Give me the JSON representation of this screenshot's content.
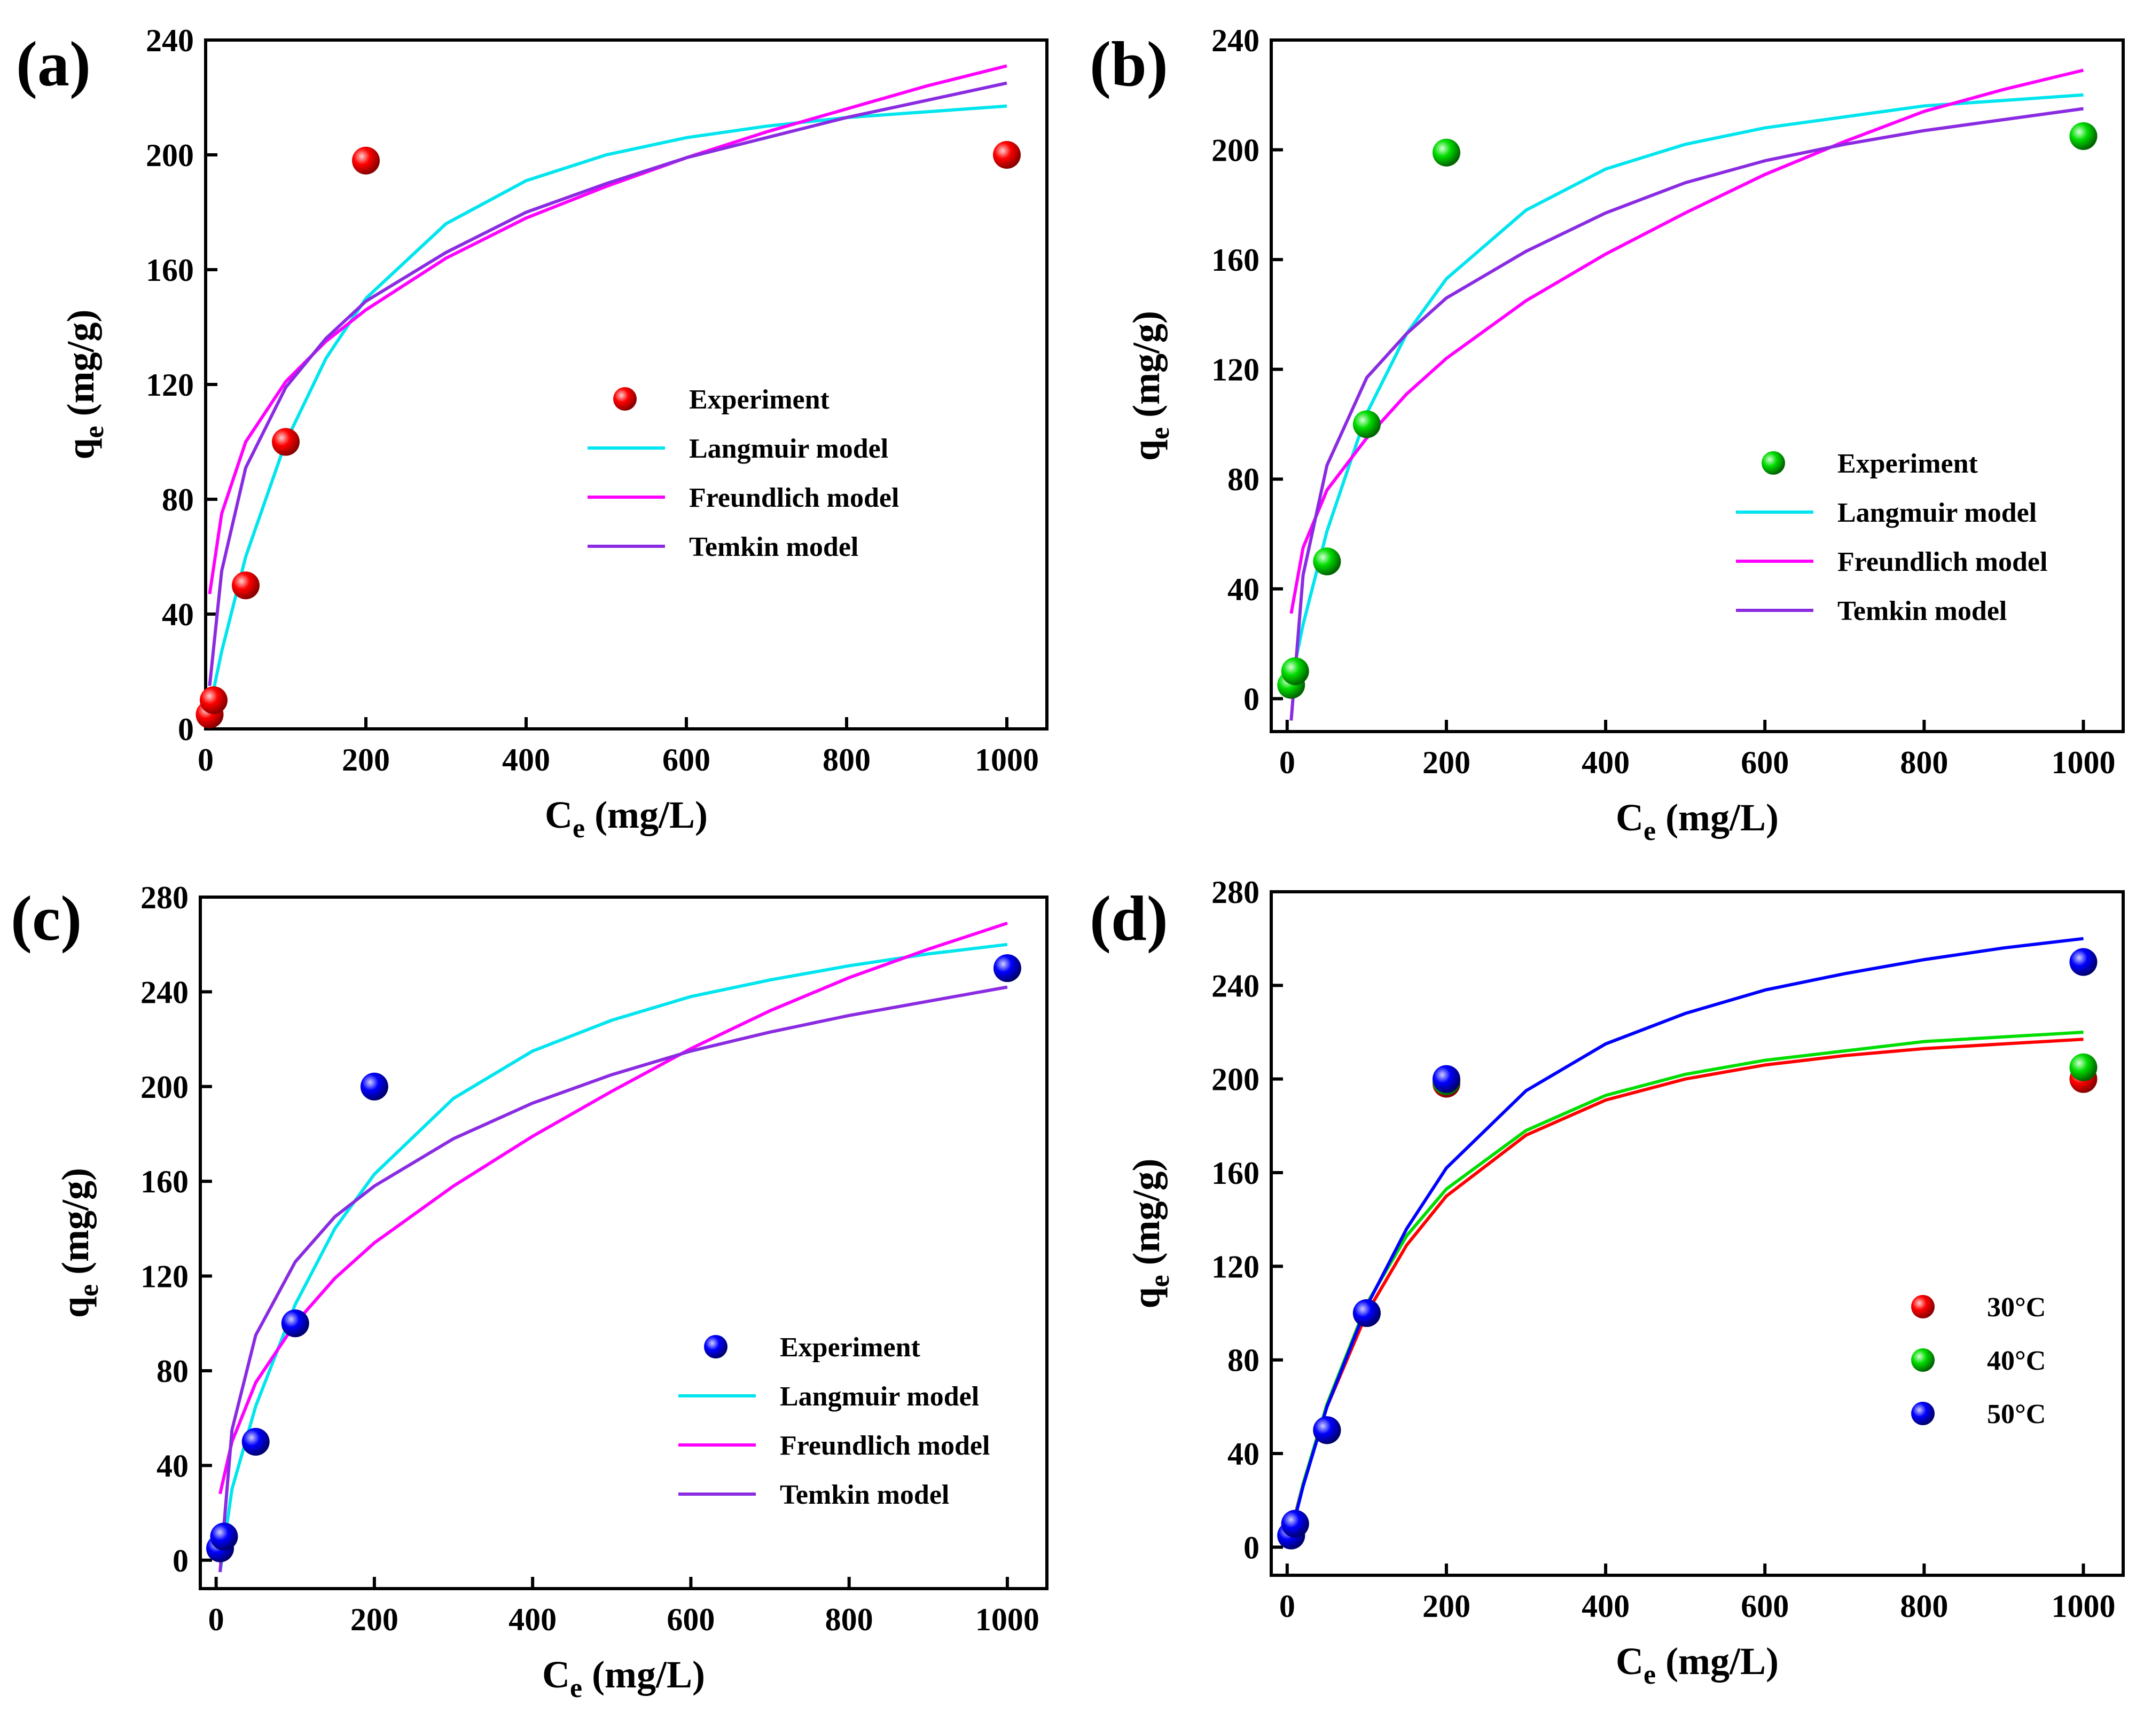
{
  "colors": {
    "langmuir": "#00e5ee",
    "freundlich": "#ff00ff",
    "temkin": "#8a2be2",
    "red": "#ff0000",
    "green": "#00dd00",
    "blue": "#0000ff"
  },
  "chart_data": [
    {
      "id": "a",
      "panel_label": "(a)",
      "type": "scatter",
      "xlabel_main": "C",
      "xlabel_sub": "e",
      "xlabel_unit": " (mg/L)",
      "ylabel_main": "q",
      "ylabel_sub": "e",
      "ylabel_unit": " (mg/g)",
      "xlim": [
        0,
        1050
      ],
      "ylim": [
        0,
        240
      ],
      "xticks": [
        0,
        200,
        400,
        600,
        800,
        1000
      ],
      "yticks": [
        0,
        40,
        80,
        120,
        160,
        200,
        240
      ],
      "legend": [
        {
          "label": "Experiment",
          "kind": "marker",
          "color": "#ff0000"
        },
        {
          "label": "Langmuir model",
          "kind": "line",
          "color": "#00e5ee"
        },
        {
          "label": "Freundlich model",
          "kind": "line",
          "color": "#ff00ff"
        },
        {
          "label": "Temkin model",
          "kind": "line",
          "color": "#8a2be2"
        }
      ],
      "series": [
        {
          "name": "Experiment",
          "kind": "points",
          "color": "#ff0000",
          "x": [
            5,
            10,
            50,
            100,
            200,
            1000
          ],
          "y": [
            5,
            10,
            50,
            100,
            198,
            200
          ]
        },
        {
          "name": "Langmuir model",
          "kind": "curve",
          "color": "#00e5ee",
          "x": [
            5,
            20,
            50,
            100,
            150,
            200,
            300,
            400,
            500,
            600,
            700,
            800,
            900,
            1000
          ],
          "y": [
            7,
            27,
            60,
            100,
            129,
            150,
            176,
            191,
            200,
            206,
            210,
            213,
            215,
            217
          ]
        },
        {
          "name": "Freundlich model",
          "kind": "curve",
          "color": "#ff00ff",
          "x": [
            5,
            20,
            50,
            100,
            150,
            200,
            300,
            400,
            500,
            600,
            700,
            800,
            900,
            1000
          ],
          "y": [
            47,
            75,
            100,
            121,
            135,
            146,
            164,
            178,
            189,
            199,
            208,
            216,
            224,
            231
          ]
        },
        {
          "name": "Temkin model",
          "kind": "curve",
          "color": "#8a2be2",
          "x": [
            5,
            20,
            50,
            100,
            150,
            200,
            300,
            400,
            500,
            600,
            700,
            800,
            900,
            1000
          ],
          "y": [
            15,
            55,
            91,
            119,
            136,
            149,
            166,
            180,
            190,
            199,
            206,
            213,
            219,
            225
          ]
        }
      ]
    },
    {
      "id": "b",
      "panel_label": "(b)",
      "type": "scatter",
      "xlabel_main": "C",
      "xlabel_sub": "e",
      "xlabel_unit": " (mg/L)",
      "ylabel_main": "q",
      "ylabel_sub": "e",
      "ylabel_unit": " (mg/g)",
      "xlim": [
        -20,
        1050
      ],
      "ylim": [
        -12,
        240
      ],
      "xticks": [
        0,
        200,
        400,
        600,
        800,
        1000
      ],
      "yticks": [
        0,
        40,
        80,
        120,
        160,
        200,
        240
      ],
      "legend": [
        {
          "label": "Experiment",
          "kind": "marker",
          "color": "#00dd00"
        },
        {
          "label": "Langmuir model",
          "kind": "line",
          "color": "#00e5ee"
        },
        {
          "label": "Freundlich model",
          "kind": "line",
          "color": "#ff00ff"
        },
        {
          "label": "Temkin model",
          "kind": "line",
          "color": "#8a2be2"
        }
      ],
      "series": [
        {
          "name": "Experiment",
          "kind": "points",
          "color": "#00dd00",
          "x": [
            5,
            10,
            50,
            100,
            200,
            1000
          ],
          "y": [
            5,
            10,
            50,
            100,
            199,
            205
          ]
        },
        {
          "name": "Langmuir model",
          "kind": "curve",
          "color": "#00e5ee",
          "x": [
            5,
            20,
            50,
            100,
            150,
            200,
            300,
            400,
            500,
            600,
            700,
            800,
            900,
            1000
          ],
          "y": [
            6,
            27,
            61,
            104,
            133,
            153,
            178,
            193,
            202,
            208,
            212,
            216,
            218,
            220
          ]
        },
        {
          "name": "Freundlich model",
          "kind": "curve",
          "color": "#ff00ff",
          "x": [
            5,
            20,
            50,
            100,
            150,
            200,
            300,
            400,
            500,
            600,
            700,
            800,
            900,
            1000
          ],
          "y": [
            31,
            55,
            76,
            95,
            111,
            124,
            145,
            162,
            177,
            191,
            203,
            214,
            222,
            229
          ]
        },
        {
          "name": "Temkin model",
          "kind": "curve",
          "color": "#8a2be2",
          "x": [
            5,
            20,
            50,
            100,
            150,
            200,
            300,
            400,
            500,
            600,
            700,
            800,
            900,
            1000
          ],
          "y": [
            -8,
            45,
            85,
            117,
            133,
            146,
            163,
            177,
            188,
            196,
            202,
            207,
            211,
            215
          ]
        }
      ]
    },
    {
      "id": "c",
      "panel_label": "(c)",
      "type": "scatter",
      "xlabel_main": "C",
      "xlabel_sub": "e",
      "xlabel_unit": " (mg/L)",
      "ylabel_main": "q",
      "ylabel_sub": "e",
      "ylabel_unit": " (mg/g)",
      "xlim": [
        -20,
        1050
      ],
      "ylim": [
        -12,
        280
      ],
      "xticks": [
        0,
        200,
        400,
        600,
        800,
        1000
      ],
      "yticks": [
        0,
        40,
        80,
        120,
        160,
        200,
        240,
        280
      ],
      "legend": [
        {
          "label": "Experiment",
          "kind": "marker",
          "color": "#0000ff"
        },
        {
          "label": "Langmuir model",
          "kind": "line",
          "color": "#00e5ee"
        },
        {
          "label": "Freundlich model",
          "kind": "line",
          "color": "#ff00ff"
        },
        {
          "label": "Temkin model",
          "kind": "line",
          "color": "#8a2be2"
        }
      ],
      "series": [
        {
          "name": "Experiment",
          "kind": "points",
          "color": "#0000ff",
          "x": [
            5,
            10,
            50,
            100,
            200,
            1000
          ],
          "y": [
            5,
            10,
            50,
            100,
            200,
            250
          ]
        },
        {
          "name": "Langmuir model",
          "kind": "curve",
          "color": "#00e5ee",
          "x": [
            5,
            20,
            50,
            100,
            150,
            200,
            300,
            400,
            500,
            600,
            700,
            800,
            900,
            1000
          ],
          "y": [
            -5,
            30,
            65,
            108,
            140,
            163,
            195,
            215,
            228,
            238,
            245,
            251,
            256,
            260
          ]
        },
        {
          "name": "Freundlich model",
          "kind": "curve",
          "color": "#ff00ff",
          "x": [
            5,
            20,
            50,
            100,
            150,
            200,
            300,
            400,
            500,
            600,
            700,
            800,
            900,
            1000
          ],
          "y": [
            28,
            50,
            75,
            100,
            119,
            134,
            158,
            179,
            198,
            216,
            232,
            246,
            258,
            269
          ]
        },
        {
          "name": "Temkin model",
          "kind": "curve",
          "color": "#8a2be2",
          "x": [
            5,
            20,
            50,
            100,
            150,
            200,
            300,
            400,
            500,
            600,
            700,
            800,
            900,
            1000
          ],
          "y": [
            -5,
            55,
            95,
            126,
            145,
            158,
            178,
            193,
            205,
            215,
            223,
            230,
            236,
            242
          ]
        }
      ]
    },
    {
      "id": "d",
      "panel_label": "(d)",
      "type": "scatter",
      "xlabel_main": "C",
      "xlabel_sub": "e",
      "xlabel_unit": " (mg/L)",
      "ylabel_main": "q",
      "ylabel_sub": "e",
      "ylabel_unit": " (mg/g)",
      "xlim": [
        -20,
        1050
      ],
      "ylim": [
        -12,
        280
      ],
      "xticks": [
        0,
        200,
        400,
        600,
        800,
        1000
      ],
      "yticks": [
        0,
        40,
        80,
        120,
        160,
        200,
        240,
        280
      ],
      "legend": [
        {
          "label": "30°C",
          "kind": "marker",
          "color": "#ff0000"
        },
        {
          "label": "40°C",
          "kind": "marker",
          "color": "#00dd00"
        },
        {
          "label": "50°C",
          "kind": "marker",
          "color": "#0000ff"
        }
      ],
      "series": [
        {
          "name": "30°C",
          "kind": "points",
          "color": "#ff0000",
          "x": [
            5,
            10,
            50,
            100,
            200,
            1000
          ],
          "y": [
            5,
            10,
            50,
            100,
            198,
            200
          ]
        },
        {
          "name": "40°C",
          "kind": "points",
          "color": "#00dd00",
          "x": [
            5,
            10,
            50,
            100,
            200,
            1000
          ],
          "y": [
            5,
            10,
            50,
            100,
            199,
            205
          ]
        },
        {
          "name": "50°C",
          "kind": "points",
          "color": "#0000ff",
          "x": [
            5,
            10,
            50,
            100,
            200,
            1000
          ],
          "y": [
            5,
            10,
            50,
            100,
            200,
            250
          ]
        },
        {
          "name": "30°C fit",
          "kind": "curve",
          "color": "#ff0000",
          "x": [
            5,
            20,
            50,
            100,
            150,
            200,
            300,
            400,
            500,
            600,
            700,
            800,
            900,
            1000
          ],
          "y": [
            7,
            27,
            60,
            100,
            129,
            150,
            176,
            191,
            200,
            206,
            210,
            213,
            215,
            217
          ]
        },
        {
          "name": "40°C fit",
          "kind": "curve",
          "color": "#00dd00",
          "x": [
            5,
            20,
            50,
            100,
            150,
            200,
            300,
            400,
            500,
            600,
            700,
            800,
            900,
            1000
          ],
          "y": [
            6,
            27,
            61,
            104,
            133,
            153,
            178,
            193,
            202,
            208,
            212,
            216,
            218,
            220
          ]
        },
        {
          "name": "50°C fit",
          "kind": "curve",
          "color": "#0000ff",
          "x": [
            5,
            20,
            50,
            100,
            150,
            200,
            300,
            400,
            500,
            600,
            700,
            800,
            900,
            1000
          ],
          "y": [
            6,
            26,
            60,
            103,
            136,
            162,
            195,
            215,
            228,
            238,
            245,
            251,
            256,
            260
          ]
        }
      ]
    }
  ]
}
